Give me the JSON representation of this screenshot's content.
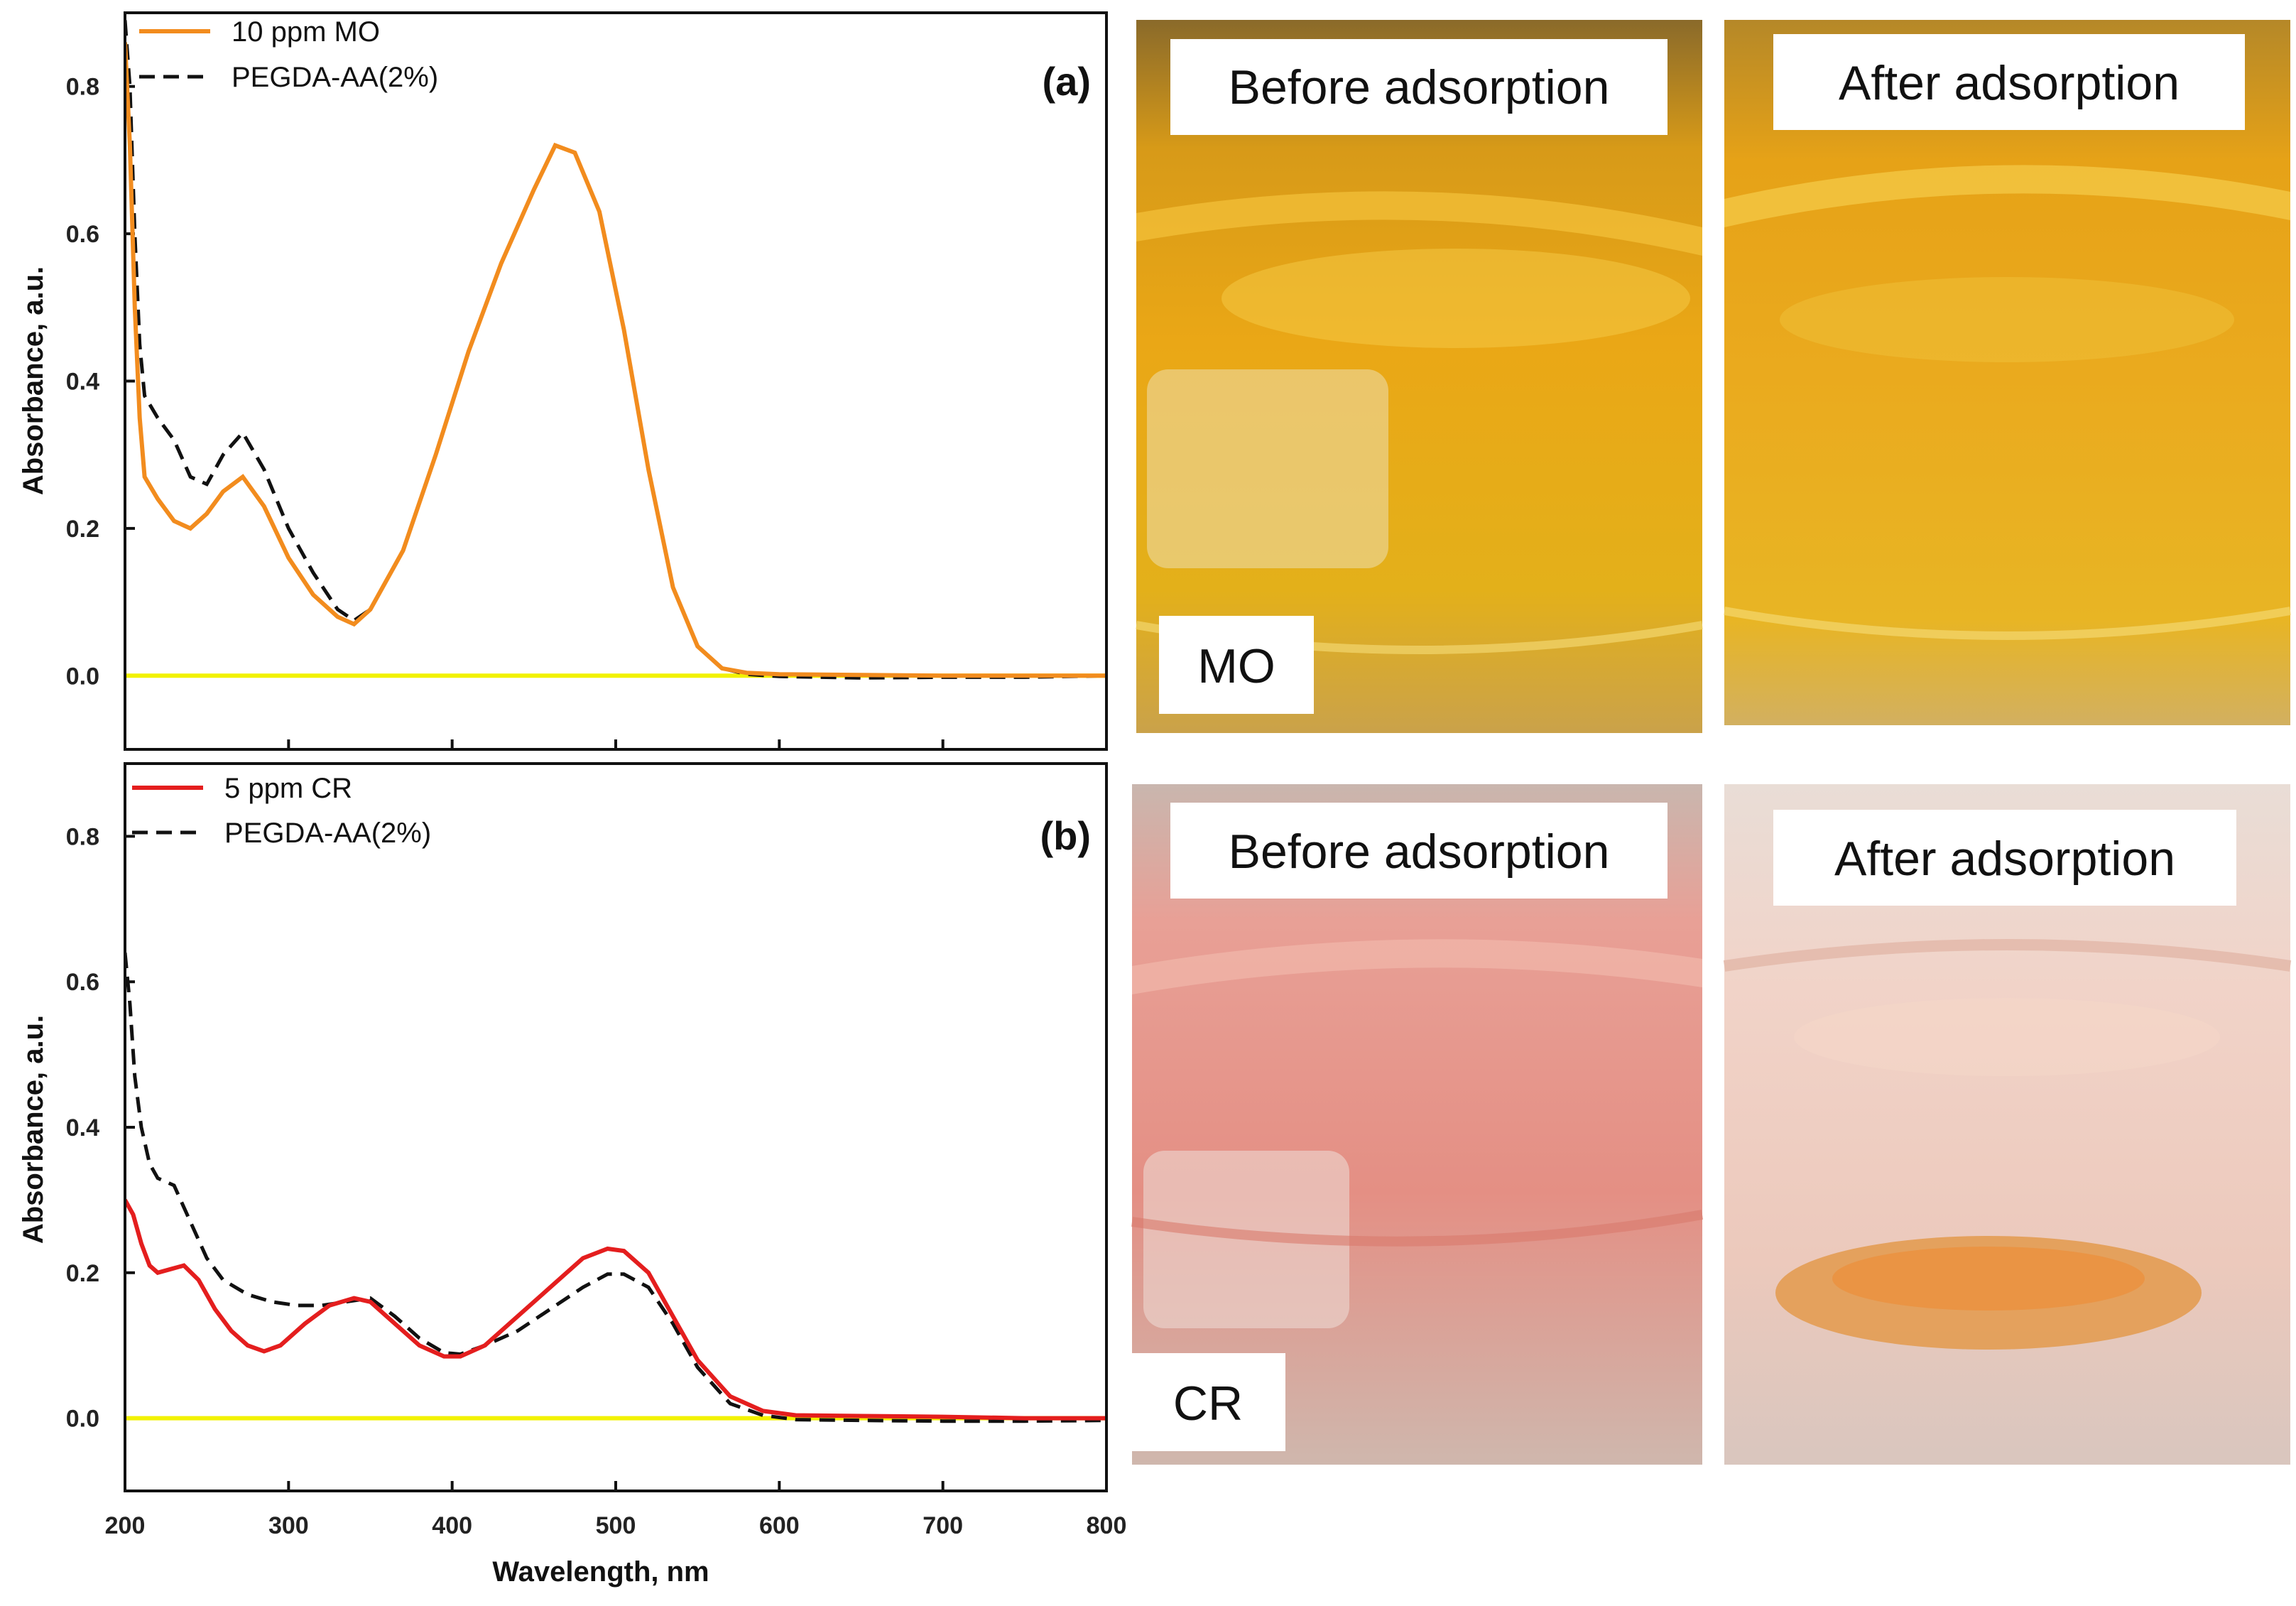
{
  "chart_data": [
    {
      "type": "line",
      "panel": "(a)",
      "xlabel": "Wavelength, nm",
      "ylabel": "Absorbance, a.u.",
      "xlim": [
        200,
        800
      ],
      "ylim": [
        -0.1,
        0.9
      ],
      "xticks": [
        "200",
        "300",
        "400",
        "500",
        "600",
        "700",
        "800"
      ],
      "yticks": [
        "0.0",
        "0.2",
        "0.4",
        "0.6",
        "0.8"
      ],
      "legend_position": "top-left",
      "series": [
        {
          "name": "10 ppm MO",
          "style": "solid",
          "color": "#F28C1E",
          "x": [
            200,
            203,
            206,
            209,
            212,
            220,
            230,
            240,
            250,
            260,
            272,
            285,
            300,
            315,
            330,
            340,
            350,
            370,
            390,
            410,
            430,
            450,
            463,
            475,
            490,
            505,
            520,
            535,
            550,
            565,
            580,
            600,
            650,
            700,
            750,
            800
          ],
          "y": [
            0.86,
            0.72,
            0.5,
            0.35,
            0.27,
            0.24,
            0.21,
            0.2,
            0.22,
            0.25,
            0.27,
            0.23,
            0.16,
            0.11,
            0.08,
            0.07,
            0.09,
            0.17,
            0.3,
            0.44,
            0.56,
            0.66,
            0.72,
            0.71,
            0.63,
            0.47,
            0.28,
            0.12,
            0.04,
            0.01,
            0.004,
            0.002,
            0.001,
            0.0,
            0.0,
            0.0
          ]
        },
        {
          "name": "PEGDA-AA(2%)",
          "style": "dashed",
          "color": "#111111",
          "x": [
            200,
            203,
            206,
            209,
            212,
            220,
            230,
            240,
            250,
            260,
            272,
            285,
            300,
            315,
            330,
            340,
            350,
            370,
            390,
            410,
            430,
            450,
            463,
            475,
            490,
            505,
            520,
            535,
            550,
            565,
            580,
            600,
            650,
            700,
            750,
            800
          ],
          "y": [
            0.89,
            0.8,
            0.6,
            0.45,
            0.38,
            0.35,
            0.32,
            0.27,
            0.26,
            0.3,
            0.33,
            0.28,
            0.2,
            0.14,
            0.09,
            0.075,
            0.09,
            0.17,
            0.3,
            0.44,
            0.56,
            0.66,
            0.72,
            0.71,
            0.63,
            0.47,
            0.28,
            0.12,
            0.04,
            0.01,
            0.002,
            -0.001,
            -0.003,
            -0.002,
            -0.002,
            0.0
          ]
        },
        {
          "name": "baseline",
          "style": "solid",
          "color": "#F2F200",
          "x": [
            200,
            800
          ],
          "y": [
            0.0,
            0.0
          ]
        }
      ]
    },
    {
      "type": "line",
      "panel": "(b)",
      "xlabel": "Wavelength, nm",
      "ylabel": "Absorbance, a.u.",
      "xlim": [
        200,
        800
      ],
      "ylim": [
        -0.1,
        0.9
      ],
      "xticks": [
        "200",
        "300",
        "400",
        "500",
        "600",
        "700",
        "800"
      ],
      "yticks": [
        "0.0",
        "0.2",
        "0.4",
        "0.6",
        "0.8"
      ],
      "legend_position": "top-left",
      "series": [
        {
          "name": "5 ppm CR",
          "style": "solid",
          "color": "#E41E1E",
          "x": [
            200,
            205,
            210,
            215,
            220,
            228,
            236,
            245,
            255,
            265,
            275,
            285,
            295,
            310,
            325,
            340,
            350,
            365,
            380,
            395,
            405,
            420,
            440,
            460,
            480,
            495,
            505,
            520,
            535,
            550,
            570,
            590,
            610,
            650,
            700,
            750,
            800
          ],
          "y": [
            0.3,
            0.28,
            0.24,
            0.21,
            0.2,
            0.205,
            0.21,
            0.19,
            0.15,
            0.12,
            0.1,
            0.092,
            0.1,
            0.13,
            0.155,
            0.165,
            0.16,
            0.13,
            0.1,
            0.085,
            0.085,
            0.1,
            0.14,
            0.18,
            0.22,
            0.233,
            0.23,
            0.2,
            0.14,
            0.08,
            0.03,
            0.01,
            0.004,
            0.003,
            0.002,
            0.0,
            0.0
          ]
        },
        {
          "name": "PEGDA-AA(2%)",
          "style": "dashed",
          "color": "#111111",
          "x": [
            200,
            203,
            206,
            210,
            215,
            220,
            230,
            240,
            250,
            260,
            275,
            290,
            305,
            320,
            335,
            350,
            365,
            380,
            395,
            405,
            420,
            440,
            460,
            480,
            495,
            505,
            520,
            535,
            550,
            570,
            590,
            610,
            650,
            700,
            750,
            800
          ],
          "y": [
            0.64,
            0.57,
            0.47,
            0.4,
            0.35,
            0.33,
            0.32,
            0.27,
            0.22,
            0.19,
            0.17,
            0.16,
            0.155,
            0.155,
            0.16,
            0.165,
            0.14,
            0.11,
            0.09,
            0.088,
            0.1,
            0.12,
            0.15,
            0.18,
            0.198,
            0.198,
            0.18,
            0.13,
            0.07,
            0.02,
            0.004,
            -0.002,
            -0.003,
            -0.004,
            -0.004,
            -0.003
          ]
        },
        {
          "name": "baseline",
          "style": "solid",
          "color": "#F2F200",
          "x": [
            200,
            800
          ],
          "y": [
            0.0,
            0.0
          ]
        }
      ]
    }
  ],
  "photos": {
    "mo_before": {
      "caption": "Before adsorption",
      "tag": "MO",
      "liquid_color": "#E3A514"
    },
    "mo_after": {
      "caption": "After adsorption",
      "liquid_color": "#E8AA1E"
    },
    "cr_before": {
      "caption": "Before adsorption",
      "tag": "CR",
      "liquid_color": "#E89A90"
    },
    "cr_after": {
      "caption": "After adsorption",
      "liquid_color": "#F0CFC4"
    }
  }
}
